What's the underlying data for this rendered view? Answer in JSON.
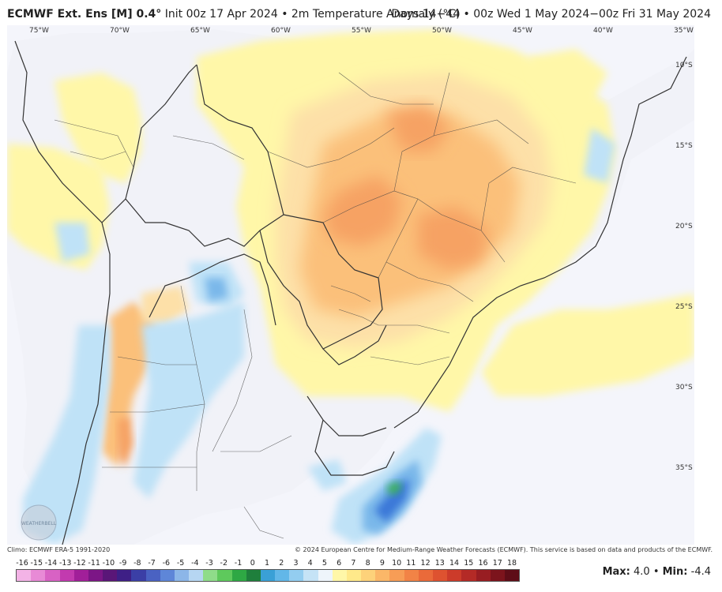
{
  "header": {
    "model": "ECMWF Ext. Ens [M] 0.4°",
    "init": "Init 00z 17 Apr 2024 • 2m Temperature Anomaly (°C)",
    "valid": "Days 14−44 • 00z Wed 1 May 2024−00z Fri 31 May 2024"
  },
  "map": {
    "lon_labels": [
      "75°W",
      "70°W",
      "65°W",
      "60°W",
      "55°W",
      "50°W",
      "45°W",
      "40°W",
      "35°W"
    ],
    "lat_labels": [
      "10°S",
      "15°S",
      "20°S",
      "25°S",
      "30°S",
      "35°S"
    ],
    "logo_text": "WEATHERBELL",
    "colors": {
      "ocean": "#f4f5fb",
      "yellow": "#fff7a8",
      "light_orange": "#fde0a8",
      "orange": "#fbc07a",
      "dark_orange": "#f6a263",
      "light_blue": "#bfe2f7",
      "blue": "#7ab8ea",
      "deep_blue": "#3a78d8",
      "green": "#39b54a",
      "border": "#333333"
    }
  },
  "footer": {
    "climo": "Climo: ECMWF ERA-5 1991-2020",
    "credit": "© 2024 European Centre for Medium-Range Weather Forecasts (ECMWF). This service is based on data and products of the ECMWF."
  },
  "colorbar": {
    "ticks": [
      "-16",
      "-15",
      "-14",
      "-13",
      "-12",
      "-11",
      "-10",
      "-9",
      "-8",
      "-7",
      "-6",
      "-5",
      "-4",
      "-3",
      "-2",
      "-1",
      "0",
      "1",
      "2",
      "3",
      "4",
      "5",
      "6",
      "7",
      "8",
      "9",
      "10",
      "11",
      "12",
      "13",
      "14",
      "15",
      "16",
      "17",
      "18"
    ],
    "colors": [
      "#f3b3e6",
      "#e88ad6",
      "#d862c4",
      "#c23aaf",
      "#a11f99",
      "#7c1686",
      "#5a1678",
      "#3e1f86",
      "#3b3fa6",
      "#4a62c2",
      "#5e86d8",
      "#8cb6e8",
      "#b6d6f2",
      "#8fdc8a",
      "#5ec95c",
      "#2ea844",
      "#1f7f3c",
      "#3aa0d6",
      "#62b7e8",
      "#93cdf0",
      "#c5e3f6",
      "#eef5fb",
      "#fff7a8",
      "#ffe98a",
      "#fdd27a",
      "#fbb768",
      "#f79d56",
      "#f28346",
      "#ea6a3a",
      "#de5230",
      "#cc3b2a",
      "#b42a26",
      "#981d22",
      "#7c141c",
      "#5e0d17"
    ],
    "stats_max_label": "Max:",
    "stats_max": "4.0",
    "stats_min_label": "Min:",
    "stats_min": "-4.4"
  }
}
